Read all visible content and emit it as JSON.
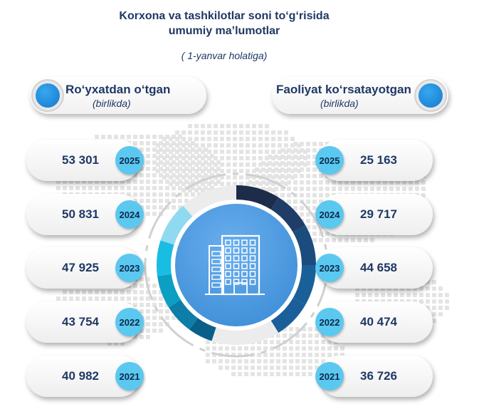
{
  "title_line1": "Korxona va tashkilotlar soni to‘g‘risida",
  "title_line2": "umumiy ma’lumotlar",
  "subtitle": "( 1-yanvar holatiga)",
  "left": {
    "title": "Ro‘yxatdan o‘tgan",
    "unit": "(birlikda)"
  },
  "right": {
    "title": "Faoliyat ko‘rsatayotgan",
    "unit": "(birlikda)"
  },
  "colors": {
    "text": "#1f3864",
    "badge": "#5bc8f0",
    "center": "#3f8fd8",
    "segments_left": [
      "#8fdaf0",
      "#19bde3",
      "#0a9fc3",
      "#0c7ea8",
      "#0a5f88"
    ],
    "segments_right": [
      "#1c2c4a",
      "#1f3d66",
      "#1b4c7e",
      "#1a6098",
      "#1b5f9a"
    ]
  },
  "chart_data": {
    "type": "table",
    "title": "Korxona va tashkilotlar soni to‘g‘risida umumiy ma’lumotlar",
    "subtitle": "( 1-yanvar holatiga)",
    "categories": [
      "2025",
      "2024",
      "2023",
      "2022",
      "2021"
    ],
    "series": [
      {
        "name": "Ro‘yxatdan o‘tgan",
        "values": [
          53301,
          50831,
          47925,
          43754,
          40982
        ]
      },
      {
        "name": "Faoliyat ko‘rsatayotgan",
        "values": [
          25163,
          29717,
          44658,
          40474,
          36726
        ]
      }
    ],
    "labels_left": [
      "53 301",
      "50 831",
      "47 925",
      "43 754",
      "40 982"
    ],
    "labels_right": [
      "25 163",
      "29 717",
      "44 658",
      "40 474",
      "36 726"
    ],
    "unit": "(birlikda)"
  }
}
